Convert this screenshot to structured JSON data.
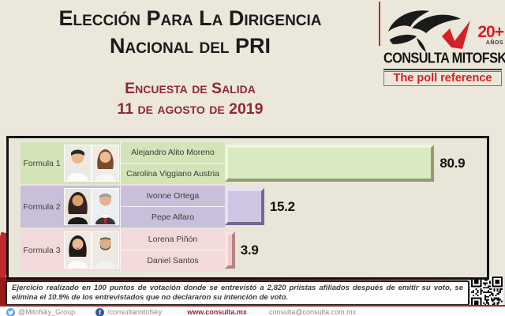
{
  "header": {
    "title_line1": "Elección Para La Dirigencia",
    "title_line2": "Nacional del PRI",
    "subtitle_line1": "Encuesta de Salida",
    "subtitle_line2": "11 de agosto de 2019"
  },
  "logo": {
    "brand": "CONSULTA MITOFSKY",
    "tagline": "The poll reference",
    "years_number": "20+",
    "years_label": "AÑOS"
  },
  "chart_data": {
    "type": "bar",
    "orientation": "horizontal",
    "title": "Elección para la Dirigencia Nacional del PRI - Encuesta de Salida 11 de agosto de 2019",
    "unit": "%",
    "xlim": [
      0,
      100
    ],
    "categories": [
      "Formula 1",
      "Formula 2",
      "Formula 3"
    ],
    "values": [
      80.9,
      15.2,
      3.9
    ],
    "rows": [
      {
        "label": "Formula 1",
        "candidates": [
          "Alejandro Alito Moreno",
          "Carolina Viggiano Austria"
        ],
        "value": "80.9",
        "row_color": "#d2e4b8",
        "bar_color": "#d9e9c2"
      },
      {
        "label": "Formula 2",
        "candidates": [
          "Ivonne Ortega",
          "Pepe Alfaro"
        ],
        "value": "15.2",
        "row_color": "#c9bfdb",
        "bar_color": "#cfc5e3"
      },
      {
        "label": "Formula 3",
        "candidates": [
          "Lorena Piñón",
          "Daniel Santos"
        ],
        "value": "3.9",
        "row_color": "#f2dada",
        "bar_color": "#eecccc"
      }
    ]
  },
  "footnote": "Ejercicio realizado en 100 puntos de votación donde se entrevistó a 2,820 priistas afiliados después de emitir su voto, se elimina el 10.9% de los entrevistados que no declararon su intención de voto.",
  "footer": {
    "twitter": "@Mitofsky_Group",
    "facebook": "/consultamitofsky",
    "website": "www.consulta.mx",
    "email": "consulta@consulta.com.mx"
  },
  "colors": {
    "page_bg": "#ebe7da",
    "maroon": "#8c2b33",
    "brand_red": "#d62027",
    "band_red": "#9b191d",
    "chart_border": "#141414"
  }
}
